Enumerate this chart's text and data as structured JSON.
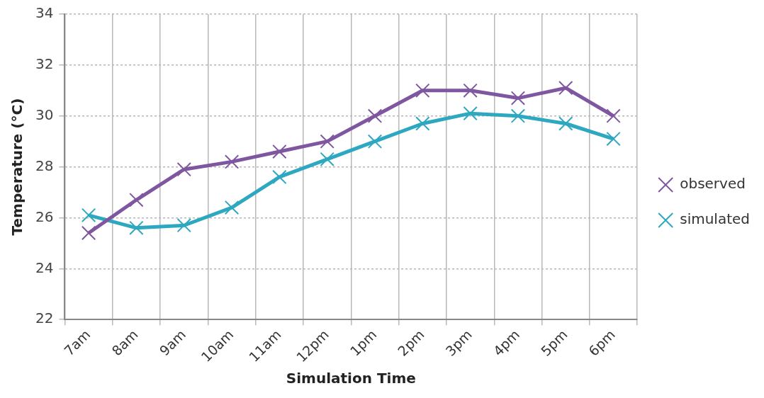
{
  "chart_data": {
    "type": "line",
    "xlabel": "Simulation Time",
    "ylabel": "Temperature (°C)",
    "categories": [
      "7am",
      "8am",
      "9am",
      "10am",
      "11am",
      "12pm",
      "1pm",
      "2pm",
      "3pm",
      "4pm",
      "5pm",
      "6pm"
    ],
    "series": [
      {
        "name": "observed",
        "color": "#7f56a0",
        "marker": "cross",
        "values": [
          25.4,
          26.7,
          27.9,
          28.2,
          28.6,
          29.0,
          30.0,
          31.0,
          31.0,
          30.7,
          31.1,
          30.0
        ]
      },
      {
        "name": "simulated",
        "color": "#2ea8c0",
        "marker": "cross",
        "values": [
          26.1,
          25.6,
          25.7,
          26.4,
          27.6,
          28.3,
          29.0,
          29.7,
          30.1,
          30.0,
          29.7,
          29.1
        ]
      }
    ],
    "ylim": [
      22,
      34
    ],
    "yticks": [
      22,
      24,
      26,
      28,
      30,
      32,
      34
    ],
    "grid": true,
    "legend": "right",
    "line_style": "solid"
  }
}
